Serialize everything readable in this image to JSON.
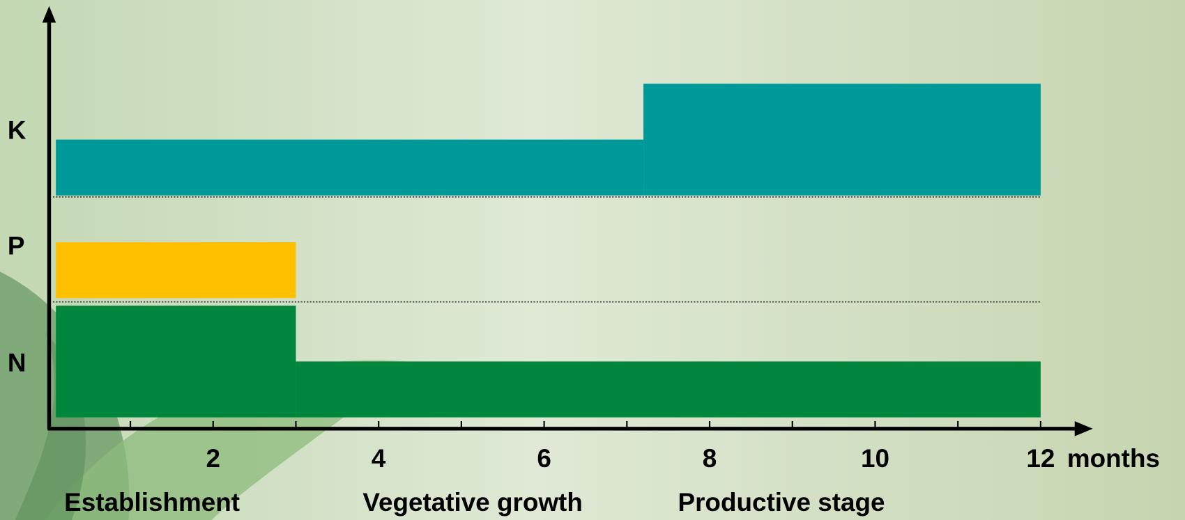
{
  "chart_data": {
    "type": "timeline",
    "x_label": "months",
    "xlim": [
      0,
      12
    ],
    "xticks": [
      2,
      4,
      6,
      8,
      10,
      12
    ],
    "xminorticks": [
      1,
      3,
      5,
      7,
      9,
      11
    ],
    "rows": [
      {
        "name": "K",
        "color": "#009999",
        "segments": [
          {
            "start": 0.1,
            "end": 7.2,
            "level": 1
          },
          {
            "start": 7.2,
            "end": 12,
            "level": 2
          }
        ]
      },
      {
        "name": "P",
        "color": "#ffc000",
        "segments": [
          {
            "start": 0.1,
            "end": 3,
            "level": 1
          }
        ]
      },
      {
        "name": "N",
        "color": "#00873d",
        "segments": [
          {
            "start": 0.1,
            "end": 3,
            "level": 2
          },
          {
            "start": 3,
            "end": 12,
            "level": 1
          }
        ]
      }
    ],
    "phases": [
      "Establishment",
      "Vegetative growth",
      "Productive stage"
    ]
  }
}
